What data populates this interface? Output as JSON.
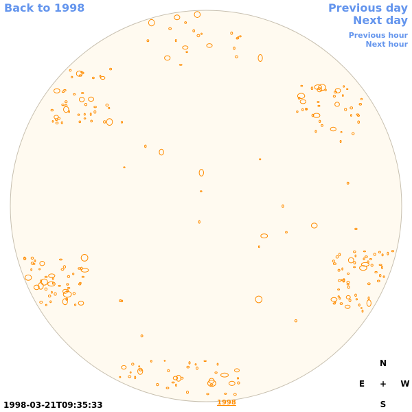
{
  "nav": {
    "back": "Back to 1998",
    "previous_day": "Previous day",
    "next_day": "Next day",
    "previous_hour": "Previous hour",
    "next_hour": "Next hour"
  },
  "compass": {
    "north": "N",
    "east": "E",
    "center": "+",
    "west": "W",
    "south": "S"
  },
  "timestamp": "1998-03-21T09:35:33",
  "year_link": "1998",
  "colors": {
    "disk_fill": "#fffaf0",
    "disk_edge": "#c8c0b0",
    "contour": "#ff8c00",
    "nav_link": "#6495ed"
  }
}
